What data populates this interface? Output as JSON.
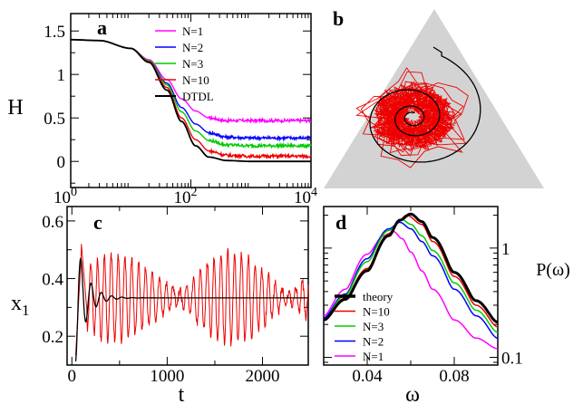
{
  "chart_data": [
    {
      "panel": "a",
      "type": "line",
      "title": "",
      "xlabel": "",
      "ylabel": "H",
      "xscale": "log",
      "xlim": [
        1,
        10000
      ],
      "ylim": [
        -0.3,
        1.7
      ],
      "xticks": [
        1,
        100,
        10000
      ],
      "xtick_labels": [
        [
          "10",
          "0"
        ],
        [
          "10",
          "2"
        ],
        [
          "10",
          "4"
        ]
      ],
      "yticks": [
        0,
        0.5,
        1,
        1.5
      ],
      "ytick_labels": [
        "0",
        "0.5",
        "1",
        "1.5"
      ],
      "legend": "top-right",
      "series": [
        {
          "name": "N=1",
          "color": "#ff00ff",
          "plateau": 0.47,
          "x": [
            1,
            3,
            10,
            20,
            40,
            70,
            120,
            200,
            400,
            1000,
            3000,
            10000
          ],
          "y": [
            1.4,
            1.39,
            1.3,
            1.17,
            0.94,
            0.72,
            0.58,
            0.5,
            0.47,
            0.47,
            0.47,
            0.47
          ]
        },
        {
          "name": "N=2",
          "color": "#0000ff",
          "plateau": 0.27,
          "x": [
            1,
            3,
            10,
            20,
            40,
            70,
            120,
            200,
            400,
            1000,
            3000,
            10000
          ],
          "y": [
            1.4,
            1.39,
            1.3,
            1.16,
            0.9,
            0.62,
            0.43,
            0.33,
            0.28,
            0.27,
            0.27,
            0.27
          ]
        },
        {
          "name": "N=3",
          "color": "#00cc00",
          "plateau": 0.18,
          "x": [
            1,
            3,
            10,
            20,
            40,
            70,
            120,
            200,
            400,
            1000,
            3000,
            10000
          ],
          "y": [
            1.4,
            1.39,
            1.3,
            1.16,
            0.88,
            0.57,
            0.35,
            0.24,
            0.19,
            0.18,
            0.18,
            0.18
          ]
        },
        {
          "name": "N=10",
          "color": "#ee0000",
          "plateau": 0.06,
          "x": [
            1,
            3,
            10,
            20,
            40,
            70,
            120,
            200,
            400,
            1000,
            3000,
            10000
          ],
          "y": [
            1.4,
            1.39,
            1.3,
            1.15,
            0.85,
            0.5,
            0.25,
            0.12,
            0.07,
            0.06,
            0.06,
            0.06
          ]
        },
        {
          "name": "DTDL",
          "color": "#000000",
          "plateau": 0.0,
          "x": [
            1,
            3,
            10,
            20,
            40,
            70,
            120,
            200,
            400,
            1000,
            3000,
            10000
          ],
          "y": [
            1.4,
            1.39,
            1.3,
            1.14,
            0.82,
            0.46,
            0.18,
            0.05,
            0.01,
            0.0,
            0.0,
            0.0
          ]
        }
      ]
    },
    {
      "panel": "b",
      "type": "scatter",
      "description_visible": "ternary simplex with spiral trajectories",
      "background_color": "#d3d3d3",
      "series": [
        {
          "color": "#ee0000",
          "kind": "stochastic trajectory"
        },
        {
          "color": "#000000",
          "kind": "deterministic spiral"
        }
      ]
    },
    {
      "panel": "c",
      "type": "line",
      "xlabel": "t",
      "ylabel": "x",
      "ylabel_subscript": "1",
      "xlim": [
        -50,
        2480
      ],
      "ylim": [
        0.1,
        0.65
      ],
      "xticks": [
        0,
        1000,
        2000
      ],
      "xtick_labels": [
        "0",
        "1000",
        "2000"
      ],
      "yticks": [
        0.2,
        0.4,
        0.6
      ],
      "ytick_labels": [
        "0.2",
        "0.4",
        "0.6"
      ],
      "series": [
        {
          "color": "#ee0000",
          "kind": "stochastic N=10",
          "mean": 0.333
        },
        {
          "color": "#000000",
          "kind": "deterministic",
          "mean": 0.333
        }
      ]
    },
    {
      "panel": "d",
      "type": "line",
      "xlabel": "ω",
      "ylabel": "P(ω)",
      "yscale": "log",
      "xlim": [
        0.02,
        0.1
      ],
      "ylim": [
        0.085,
        2.4
      ],
      "xticks": [
        0.04,
        0.08
      ],
      "xtick_labels": [
        "0.04",
        "0.08"
      ],
      "yticks": [
        0.1,
        1
      ],
      "ytick_labels": [
        "0.1",
        "1"
      ],
      "legend": "bottom-left",
      "series": [
        {
          "name": "theory",
          "color": "#000000",
          "peak_x": 0.0595,
          "peak_y": 2.05,
          "x": [
            0.02,
            0.03,
            0.04,
            0.05,
            0.055,
            0.06,
            0.065,
            0.07,
            0.08,
            0.09,
            0.1
          ],
          "y": [
            0.22,
            0.34,
            0.62,
            1.3,
            1.8,
            2.05,
            1.75,
            1.25,
            0.6,
            0.33,
            0.21
          ]
        },
        {
          "name": "N=10",
          "color": "#ee0000",
          "peak_x": 0.058,
          "peak_y": 2.0,
          "x": [
            0.02,
            0.03,
            0.04,
            0.05,
            0.055,
            0.058,
            0.065,
            0.07,
            0.08,
            0.09,
            0.1
          ],
          "y": [
            0.22,
            0.35,
            0.65,
            1.35,
            1.8,
            2.0,
            1.65,
            1.15,
            0.55,
            0.3,
            0.19
          ]
        },
        {
          "name": "N=3",
          "color": "#00cc00",
          "peak_x": 0.056,
          "peak_y": 1.82,
          "x": [
            0.02,
            0.03,
            0.04,
            0.05,
            0.056,
            0.06,
            0.065,
            0.07,
            0.08,
            0.09,
            0.1
          ],
          "y": [
            0.22,
            0.37,
            0.75,
            1.45,
            1.82,
            1.65,
            1.3,
            0.95,
            0.48,
            0.27,
            0.17
          ]
        },
        {
          "name": "N=2",
          "color": "#0000ff",
          "peak_x": 0.055,
          "peak_y": 1.72,
          "x": [
            0.02,
            0.03,
            0.04,
            0.05,
            0.055,
            0.06,
            0.065,
            0.07,
            0.08,
            0.09,
            0.1
          ],
          "y": [
            0.23,
            0.38,
            0.8,
            1.5,
            1.72,
            1.5,
            1.15,
            0.85,
            0.42,
            0.24,
            0.15
          ]
        },
        {
          "name": "N=1",
          "color": "#ff00ff",
          "peak_x": 0.052,
          "peak_y": 1.42,
          "x": [
            0.02,
            0.03,
            0.04,
            0.048,
            0.052,
            0.056,
            0.06,
            0.065,
            0.07,
            0.08,
            0.09,
            0.1
          ],
          "y": [
            0.24,
            0.42,
            0.88,
            1.3,
            1.42,
            1.22,
            0.92,
            0.62,
            0.42,
            0.22,
            0.15,
            0.12
          ]
        }
      ]
    }
  ]
}
